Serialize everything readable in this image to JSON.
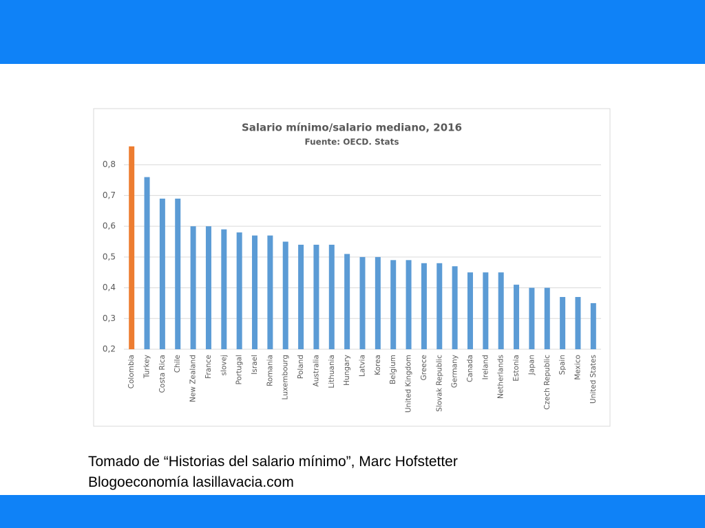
{
  "chart_data": {
    "type": "bar",
    "title": "Salario mínimo/salario mediano, 2016",
    "subtitle": "Fuente:  OECD. Stats",
    "categories": [
      "Colombia",
      "Turkey",
      "Costa Rica",
      "Chile",
      "New Zealand",
      "France",
      "slovej",
      "Portugal",
      "Israel",
      "Romania",
      "Luxembourg",
      "Poland",
      "Australia",
      "Lithuania",
      "Hungary",
      "Latvia",
      "Korea",
      "Belgium",
      "United Kingdom",
      "Greece",
      "Slovak Republic",
      "Germany",
      "Canada",
      "Ireland",
      "Netherlands",
      "Estonia",
      "Japan",
      "Czech Republic",
      "Spain",
      "Mexico",
      "United States"
    ],
    "values": [
      0.86,
      0.76,
      0.69,
      0.69,
      0.6,
      0.6,
      0.59,
      0.58,
      0.57,
      0.57,
      0.55,
      0.54,
      0.54,
      0.54,
      0.51,
      0.5,
      0.5,
      0.49,
      0.49,
      0.48,
      0.48,
      0.47,
      0.45,
      0.45,
      0.45,
      0.41,
      0.4,
      0.4,
      0.37,
      0.37,
      0.35
    ],
    "colors": [
      "#ed7d31",
      "#5b9bd5",
      "#5b9bd5",
      "#5b9bd5",
      "#5b9bd5",
      "#5b9bd5",
      "#5b9bd5",
      "#5b9bd5",
      "#5b9bd5",
      "#5b9bd5",
      "#5b9bd5",
      "#5b9bd5",
      "#5b9bd5",
      "#5b9bd5",
      "#5b9bd5",
      "#5b9bd5",
      "#5b9bd5",
      "#5b9bd5",
      "#5b9bd5",
      "#5b9bd5",
      "#5b9bd5",
      "#5b9bd5",
      "#5b9bd5",
      "#5b9bd5",
      "#5b9bd5",
      "#5b9bd5",
      "#5b9bd5",
      "#5b9bd5",
      "#5b9bd5",
      "#5b9bd5",
      "#5b9bd5"
    ],
    "ylim": [
      0.2,
      0.9
    ],
    "yticks": [
      {
        "value": 0.2,
        "label": "0,2"
      },
      {
        "value": 0.3,
        "label": "0,3"
      },
      {
        "value": 0.4,
        "label": "0,4"
      },
      {
        "value": 0.5,
        "label": "0,5"
      },
      {
        "value": 0.6,
        "label": "0,6"
      },
      {
        "value": 0.7,
        "label": "0,7"
      },
      {
        "value": 0.8,
        "label": "0,8"
      }
    ],
    "grid": true
  },
  "caption": [
    "Tomado de “Historias del salario mínimo”, Marc Hofstetter",
    "Blogoeconomía lasillavacia.com"
  ]
}
